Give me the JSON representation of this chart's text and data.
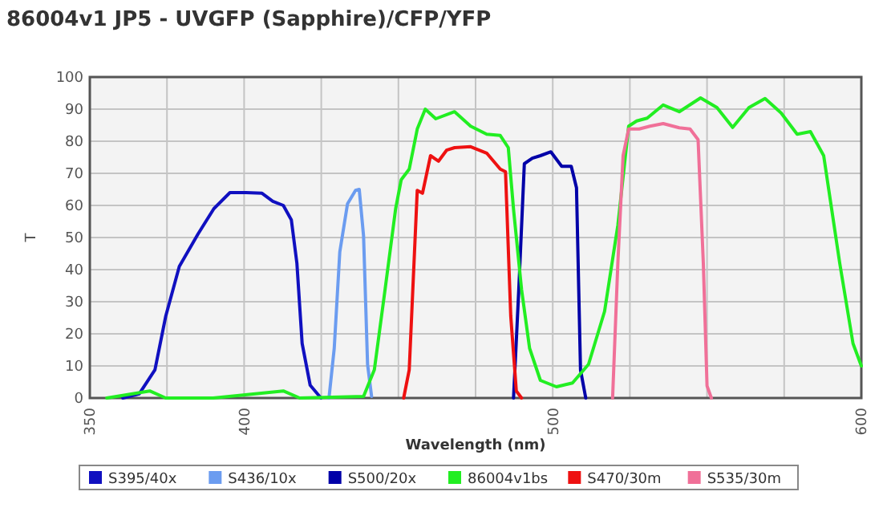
{
  "chart_data": {
    "type": "line",
    "title": "86004v1 JP5 - UVGFP (Sapphire)/CFP/YFP",
    "xlabel": "Wavelength (nm)",
    "ylabel": "T",
    "xlim": [
      350,
      600
    ],
    "xticks": [
      350,
      {
        "value": 375,
        "label": null
      },
      400,
      {
        "value": 425,
        "label": null
      },
      {
        "value": 450,
        "label": null
      },
      {
        "value": 475,
        "label": null
      },
      500,
      {
        "value": 525,
        "label": null
      },
      {
        "value": 550,
        "label": null
      },
      {
        "value": 575,
        "label": null
      },
      600
    ],
    "ylim": [
      0,
      100
    ],
    "yticks": [
      0,
      10,
      20,
      30,
      40,
      50,
      60,
      70,
      80,
      90,
      100
    ],
    "grid": true,
    "legend": "bottom",
    "marker": "none",
    "line_style": "solid",
    "series": [
      {
        "name": "S395/40x",
        "color": "#1010c0",
        "x": [
          360.7,
          366,
          371.1,
          374.6,
          379,
          385,
          390.2,
          395.4,
          400.6,
          405.8,
          409.3,
          412.7,
          415.3,
          417.1,
          418.8,
          421.4,
          424.9
        ],
        "values": [
          0,
          1.3,
          8.8,
          25.5,
          41,
          51,
          59,
          64,
          64,
          63.8,
          61.3,
          60,
          55.5,
          42,
          17,
          4,
          0
        ]
      },
      {
        "name": "S436/10x",
        "color": "#6b9cf0",
        "x": [
          427.5,
          429.2,
          431,
          433.5,
          436.1,
          437.3,
          438.7,
          440,
          441.3
        ],
        "values": [
          0,
          15.5,
          45.5,
          60.5,
          64.7,
          65,
          50.5,
          10.5,
          0.5
        ]
      },
      {
        "name": "S500/20x",
        "color": "#0000a8",
        "x": [
          487.3,
          489,
          490.8,
          493.4,
          496,
          499.4,
          502.9,
          506,
          507.7,
          509,
          510.7
        ],
        "values": [
          0,
          33.8,
          73,
          74.7,
          75.5,
          76.7,
          72.2,
          72.2,
          65.5,
          8.8,
          0
        ]
      },
      {
        "name": "86004v1bs",
        "color": "#22ee22",
        "x": [
          355.5,
          369.4,
          374.6,
          390,
          412.7,
          418,
          438.7,
          442.2,
          445.7,
          449.1,
          450.9,
          453.5,
          456.1,
          458.7,
          462.1,
          468.2,
          473.4,
          478.6,
          483,
          485.6,
          487.3,
          489.9,
          492.5,
          496,
          501.2,
          506.4,
          511.6,
          516.8,
          521.1,
          524.6,
          527.2,
          530.6,
          535.8,
          541,
          547.9,
          553.2,
          558.3,
          563.6,
          568.8,
          574,
          579.2,
          583.5,
          587.8,
          593,
          597.3,
          600
        ],
        "values": [
          0,
          2.2,
          0,
          0,
          2.2,
          0,
          0.5,
          8.8,
          34,
          59,
          68,
          71.3,
          83.8,
          90,
          87,
          89.2,
          84.7,
          82.2,
          81.8,
          78,
          58.8,
          33.8,
          15.5,
          5.5,
          3.5,
          4.7,
          10.5,
          27,
          53.8,
          84.7,
          86.3,
          87.2,
          91.3,
          89.2,
          93.5,
          90.5,
          84.3,
          90.5,
          93.3,
          88.8,
          82.2,
          83,
          75.5,
          42,
          17,
          10
        ]
      },
      {
        "name": "S470/30m",
        "color": "#ee1111",
        "x": [
          451.7,
          453.5,
          456.1,
          457.8,
          460.4,
          463,
          465.6,
          468.2,
          473.4,
          478.6,
          483,
          484.7,
          486.4,
          488.2,
          489.9
        ],
        "values": [
          0,
          8.8,
          64.7,
          63.8,
          75.5,
          73.8,
          77.2,
          78,
          78.3,
          76.3,
          71.3,
          70.5,
          25.5,
          2.2,
          0
        ]
      },
      {
        "name": "S535/30m",
        "color": "#f07098",
        "x": [
          519.4,
          521.1,
          522.8,
          524.6,
          528,
          531.5,
          535.8,
          541,
          544.5,
          547.1,
          548.8,
          550,
          551.4
        ],
        "values": [
          0,
          42,
          75.5,
          83.8,
          83.8,
          84.7,
          85.5,
          84.2,
          83.8,
          80.5,
          42,
          3.8,
          0
        ]
      }
    ]
  }
}
